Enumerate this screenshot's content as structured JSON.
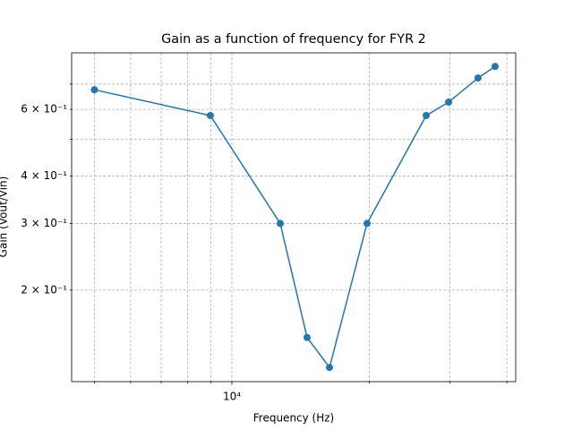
{
  "chart_data": {
    "type": "line",
    "title": "Gain as a function of frequency for FYR 2",
    "x_label": "Frequency (Hz)",
    "y_label": "Gain (Vout/Vin)",
    "log_x": true,
    "log_y": true,
    "grid": true,
    "x": [
      5000,
      8970,
      12760,
      14610,
      16360,
      19770,
      26640,
      29820,
      34590,
      37700
    ],
    "series": [
      {
        "name": "Gain",
        "color": "#1f77b4",
        "values": [
          0.676,
          0.578,
          0.3,
          0.15,
          0.125,
          0.3,
          0.578,
          0.627,
          0.726,
          0.779
        ]
      }
    ],
    "xlim": [
      4457,
      41830
    ],
    "ylim": [
      0.1147,
      0.846
    ],
    "xticks": [
      {
        "value": 10000,
        "label": "10⁴"
      }
    ],
    "xminorticks": [
      5000,
      6000,
      7000,
      8000,
      9000,
      20000,
      30000,
      40000
    ],
    "yticks": [
      {
        "value": 0.2,
        "label": "2 × 10⁻¹"
      },
      {
        "value": 0.3,
        "label": "3 × 10⁻¹"
      },
      {
        "value": 0.4,
        "label": "4 × 10⁻¹"
      },
      {
        "value": 0.6,
        "label": "6 × 10⁻¹"
      }
    ],
    "yminorticks": [
      0.5,
      0.7
    ]
  }
}
